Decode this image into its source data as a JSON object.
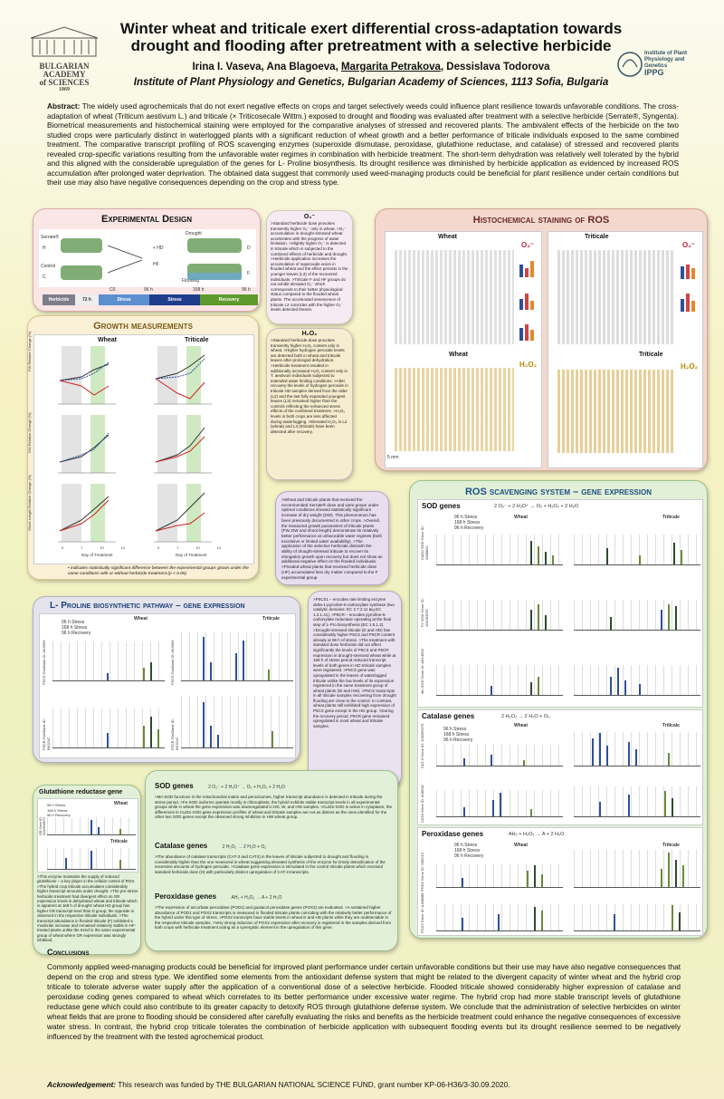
{
  "header": {
    "title": "Winter wheat and triticale exert differential cross-adaptation towards drought and flooding after pretreatment with a selective herbicide",
    "authors_before": "Irina I. Vaseva, Ana Blagoeva, ",
    "author_underlined": "Margarita Petrakova",
    "authors_after": ", Dessislava Todorova",
    "institute": "Institute of Plant Physiology and Genetics,  Bulgarian Academy of Sciences, 1113 Sofia, Bulgaria",
    "logo_left_lines": [
      "BULGARIAN",
      "ACADEMY",
      "of SCIENCES",
      "1869"
    ],
    "logo_right_lines": [
      "Institute of Plant",
      "Physiology and Genetics",
      "IPPG"
    ]
  },
  "abstract": {
    "label": "Abstract:",
    "text": " The widely used agrochemicals that do not exert negative effects on crops and target selectively weeds could influence plant resilience towards unfavorable conditions. The cross-adaptation of wheat (Triticum aestivum L.) and triticale (× Triticosecale Wittm.) exposed to drought and flooding was evaluated after treatment with a selective herbicide (Serrate®, Syngenta). Biometrical measurements and histochemical staining were employed for the comparative analyses of stressed and recovered plants. The ambivalent effects of the herbicide on the two studied crops were particularly distinct in waterlogged plants with a significant reduction of wheat growth and a better performance of triticale individuals exposed to the same combined treatment. The comparative transcript profiling of ROS scavenging enzymes (superoxide dismutase, peroxidase, glutathione reductase, and catalase) of stressed and recovered plants revealed crop-specific variations resulting from the unfavorable water regimes in combination with herbicide treatment. The short-term dehydration was relatively well tolerated by the hybrid and this aligned with the considerable upregulation of the genes for L- Proline biosynthesis. Its drought resilience was diminished by herbicide application as evidenced by increased ROS accumulation after prolonged water deprivation. The obtained data suggest that commonly used weed-managing products could be beneficial for plant resilience under certain conditions but their use may also have negative consequences depending on the crop and stress type."
  },
  "design": {
    "title": "Experimental Design",
    "labels": [
      "Serrate®",
      "H",
      "Control",
      "C",
      "Drought",
      "+ HD",
      "D",
      "HF",
      "Flooding",
      "F"
    ],
    "timeline_marks": [
      "C0",
      "96 h",
      "168 h",
      "96 h"
    ],
    "timeline_segments": [
      "Herbicide",
      "72 h",
      "Stress",
      "Stress",
      "Recovery"
    ]
  },
  "o2_panel": {
    "title": "O₂⁻",
    "text": ">Standard herbicide dose provokes transiently higher O₂⁻ only in wheat. >O₂⁻ accumulation in drought-stressed wheat accelerates with the progress of water limitation. >Slightly higher O₂⁻ is detected in triticale which is subjected to the combined effects of herbicide and drought. >Herbicide application increases the accumulation of superoxide anion in flooded wheat and the effect persists in the younger leaves (L3) of the recovered individuals. >Triticale F and HF groups do not exhibit elevated O₂⁻ which corresponds to their better physiological status compared to the flooded wheat plants. The accelerated senescence of triticale L2 coincides with the higher O₂⁻ levels detected therein."
  },
  "histo": {
    "title": "Histochemical staining of ROS",
    "wheat": "Wheat",
    "triticale": "Triticale",
    "legend": [
      "Control",
      "Drought",
      "Flooding",
      "Herbicide",
      "HD",
      "HF"
    ],
    "o2": "O₂⁻",
    "h2o2": "H₂O₂",
    "rows": [
      "Herbicide",
      "Stress",
      "Recovery"
    ],
    "scale": "5 mm"
  },
  "h2o2_panel": {
    "title": "H₂O₂",
    "text": ">Standard herbicide dose provokes transiently higher H₂O₂ content only in wheat. >Higher hydrogen peroxide levels are detected both in wheat and triticale leaves after prolonged dehydration. >Herbicide treatment resulted in additionally increased H₂O₂ content only in T. aestivum individuals subjected to extended water limiting conditions. >After recovery the levels of hydrogen peroxide in triticale HD samples derived from the older (L2) and the last fully expanded youngest leaves (L3) remained higher than the controls reflecting the enhanced stress effects of the combined treatment. >H₂O₂ levels in both crops are less affected during waterlogging. >Elevated H₂O₂ in L2 (wheat) and L3 (triticale) have been detected after recovery."
  },
  "growth": {
    "title": "Growth measurements",
    "wheat": "Wheat",
    "triticale": "Triticale",
    "ylabels": [
      "FW Relative Change (%)",
      "DW Relative Change (%)",
      "Shoot Length Relative Change (%)"
    ],
    "xlabel": "Day of Treatment",
    "xticks": [
      "0",
      "7",
      "10",
      "14"
    ],
    "note": "• indicates statistically significant difference between the experimental groups grown under the same conditions with or without herbicide treatment (p < 0.05)"
  },
  "growth_text": {
    "text": ">Wheat and triticale plants that received the recommended Serrate® dose and were grown under optimal conditions showed statistically significant increase of dry weight (DW). This phenomenon has been previously documented in other crops. >Overall, the measured growth parameters of triticale plants (FW, DW and shoot length) demonstrate its relatively better performance at unfavorable water regimes (both excessive or limited water availability). >The application of the selective herbicide diminish the ability of drought-stressed triticale to recover its elongation growth upon recovery but does not show an additional negative effect on the flooded individuals. >Flooded wheat plants that received herbicide dose (HF) accumulated less dry matter compared to the F experimental group"
  },
  "proline": {
    "title": "L- Proline biosynthetic pathway – gene expression",
    "wheat": "Wheat",
    "triticale": "Triticale",
    "legend": [
      "96 h Stress",
      "168 h Stress",
      "96 h Recovery"
    ],
    "genes": [
      "P5CS GenBank ID: AK3996",
      "P5CR GenBank ID: BK3247",
      "P5CS GenBank ID: AK3996",
      "P5CR GenBank ID: BK3247"
    ],
    "text": ">P5CS1 – encodes rate limiting enzyme delta-1-pyrroline-5-carboxylate synthase (two catalytic domains: EC 2.7.2.11 вщ EC 1.2.1.41). >P5CR – encodes pyrroline-5-carboxylate reductase operating at the final step of L-Pro biosynthesis (EC 1.5.1.2). >Drought-stressed triticale (D and HD) has considerably higher P5CS and P5CR content already at 96 h of stress. >The treatment with standard dose herbicide did not affect significantly the levels of P5CS and P5CR expression in drought-stressed wheat while at 168 h of stress period reduced transcript levels of both genes in HD triticale samples were registered. >P5CS gene was upregulated in the leaves of waterlogged triticale unlike the low levels of its expression registered in the same treatment group of wheat plants (W and HW). >P5CS transcripts in all triticale samples recovering from drought flooding are close to the control. In contrast, wheat plants still exhibited high expression of P5CS gene except in the HD group. >During the recovery period, P5CR gene remained upregulated in most wheat and triticale samples."
  },
  "ros_genes": {
    "title": "ROS scavenging system – gene expression",
    "sod": "SOD genes",
    "sod_eq": "2 O₂⁻ + 2 H₃O⁺  →  O₂ + H₂O₂ + 2 H₂O",
    "catalase": "Catalase genes",
    "cat_eq": "2 H₂O₂  →  2 H₂O + O₂",
    "peroxidase": "Peroxidase genes",
    "pox_eq": "AH₂ + H₂O₂  →  A + 2 H₂O",
    "legend": [
      "96 h Stress",
      "168 h Stress",
      "96 h Recovery"
    ],
    "wheat": "Wheat",
    "triticale": "Triticale",
    "ylabels": [
      "Cu/Zn SOD Gene ID: 4388802",
      "Fe SOD Gene ID: 101393537",
      "Mn SOD Gene ID: AK14650",
      "CAT-3 Gene ID: 100396279",
      "CATA Gene ID: A08518",
      "POD1 Gene ID: X85215",
      "POX2 Gene ID: AJ88088"
    ]
  },
  "gr": {
    "title": "Glutathione reductase gene",
    "wheat": "Wheat",
    "triticale": "Triticale",
    "legend": [
      "96 h Stress",
      "168 h Stress",
      "96 h Recovery"
    ],
    "ylabel": "GR Gene ID: 0102636672",
    "text": ">This enzyme maintains the supply of reduced glutathione – a key player in the cellular control of ROS. >The hybrid crop triticale accumulates considerably higher transcript amounts under drought. >The pre-stress herbicide treatment had divergent effect on GR expression levels in dehydrated wheat and triticale which is apparent at 168 h of drought: wheat HD group has higher GR transcript level than D group; the opposite is observed in the respective triticale individuals. >The transcript abundance in flooded triticale (F) exhibited a moderate increase and remained relatively stable in HF-treated plants unlike the trend in the same experimental group of wheat where GR expression was strongly inhibited."
  },
  "summary_genes": {
    "sod": "SOD genes",
    "sod_eq": "2 O₂⁻ + 2 H₃O⁺  →  O₂ + H₂O₂ + 2 H₂O",
    "sod_text": ">Mn-SOD functions in the mitochondrial matrix and peroxisomes, higher transcript abundance is detected in triticale during the stress period. >Fe-SOD isoforms operate mostly in chloroplasts; the hybrid exhibits stable transcript levels in all experimental groups while in wheat the gene expression was downregulated in HD, W, and HW samples. >Cu/Zn-SOD is active in cytoplasm; the differences in Cu/Zn-SOD gene expression profiles of wheat and triticale samples are not as distinct as the ones identified for the other two SOD genes except the observed strong inhibition in HW wheat group.",
    "cat": "Catalase genes",
    "cat_eq": "2 H₂O₂  →  2 H₂O + O₂",
    "cat_text": ">The abundance of catalase transcripts (CAT-3 and CAT4) in the leaves of triticale subjected to drought and flooding is considerably higher than the one measured in wheat suggesting elevated synthesis of the enzyme for timely detoxification of the excessive amounts of hydrogen peroxide. >Catalase gene expression is stimulated in the control triticale plants which received standard herbicide dose (H) with particularly distinct upregulation of CAT-3 transcripts.",
    "pox": "Peroxidase genes",
    "pox_eq": "AH₂ + H₂O₂  →  A + 2 H₂O",
    "pox_text": ">The expression of ascorbate peroxidase (POD1) and guaiacol peroxidase genes (POX2) are evaluated. >A sustained higher abundance of POD1 and POX2 transcripts is measured in flooded triticale plants coinciding with the relatively better performance of the hybrid under this type of stress. >POX2 transcripts have stable levels in wheat D and HD plants while they are undetectable in the respective triticale samples. >Very strong induction of POX2 expression after recovery is registered in the samples derived from both crops with herbicide treatment acting as a synergistic element in the upregulation of this gene."
  },
  "conclusions": {
    "title": "Conclusions",
    "text": "Commonly applied weed-managing products could be beneficial for improved plant performance under certain unfavorable conditions but their use may have also negative consequences that depend on the crop and stress type. We identified some elements from the antioxidant defense system that might be related to the divergent capacity of winter wheat and the hybrid crop triticale to tolerate adverse water supply after the application of a conventional dose of a selective herbicide. Flooded triticale showed considerably higher expression of catalase and peroxidase coding genes compared to wheat which correlates to its better performance under excessive water regime. The hybrid crop had more stable transcript levels of glutathione reductase gene which could also contribute to its greater capacity to detoxify ROS through glutathione defense system. We conclude that the administration of selective herbicides on winter wheat fields that are prone to flooding should be considered after carefully evaluating the risks and benefits as the herbicide treatment could enhance the negative consequences of excessive water stress. In contrast, the hybrid crop triticale tolerates the combination of herbicide application with subsequent flooding events but its drought resilience seemed to be negatively influenced by the treatment with the tested agrochemical product."
  },
  "ack": {
    "label": "Acknowledgement:",
    "text": " This research was funded by THE BULGARIAN NATIONAL SCIENCE FUND, grant number KP-06-H36/3-30.09.2020."
  }
}
